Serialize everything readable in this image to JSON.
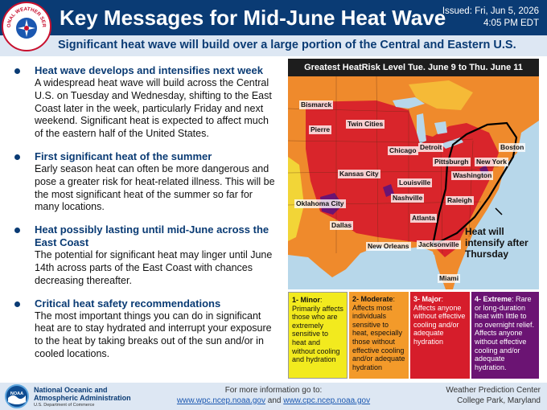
{
  "header": {
    "title": "Key Messages for Mid-June Heat Wave",
    "issued_line1": "Issued: Fri, Jun 5, 2026",
    "issued_line2": "4:05 PM EDT",
    "logo_text": "NATIONAL WEATHER SERVICE",
    "logo_icon": "nws-logo-icon"
  },
  "subtitle": "Significant heat wave will build over a large portion of the Central and Eastern U.S.",
  "messages": [
    {
      "headline": "Heat wave develops and intensifies next week",
      "body": "A widespread heat wave will build across the Central U.S. on Tuesday and Wednesday, shifting to the East Coast later in the week, particularly Friday and next weekend. Significant heat is expected to affect much of the eastern half of the United States."
    },
    {
      "headline": "First significant heat of the summer",
      "body": "Early season heat can often be more dangerous and pose a greater risk for heat-related illness. This will be the most significant heat of the summer so far for many locations."
    },
    {
      "headline": "Heat possibly lasting until mid-June across the East Coast",
      "body": "The potential for significant heat may linger until June 14th across parts of the East Coast with chances decreasing thereafter."
    },
    {
      "headline": "Critical heat safety recommendations",
      "body": "The most important things you can do in significant heat are to stay hydrated and interrupt your exposure to the heat by taking breaks out of the sun and/or in cooled locations."
    }
  ],
  "map": {
    "title": "Greatest HeatRisk Level Tue. June 9 to Thu. June 11",
    "annotation": "Heat will intensify after Thursday",
    "cities": [
      "Bismarck",
      "Pierre",
      "Twin Cities",
      "Detroit",
      "Chicago",
      "Boston",
      "Pittsburgh",
      "New York",
      "Washington",
      "Kansas City",
      "Louisville",
      "Raleigh",
      "Nashville",
      "Oklahoma City",
      "Atlanta",
      "Dallas",
      "New Orleans",
      "Jacksonville",
      "Miami"
    ]
  },
  "legend": [
    {
      "name": "1- Minor",
      "desc": "Primarily affects those who are extremely sensitive to heat and without cooling and hydration",
      "color": "#f2ea1e"
    },
    {
      "name": "2- Moderate",
      "desc": "Affects most individuals sensitive to heat, especially those without effective cooling and/or adequate hydration",
      "color": "#f39a2a"
    },
    {
      "name": "3- Major",
      "desc": "Affects anyone without effective cooling and/or adequate hydration",
      "color": "#d61d2b"
    },
    {
      "name": "4- Extreme",
      "desc": "Rare or long-duration heat with little to no overnight relief. Affects anyone without effective cooling and/or adequate hydration.",
      "color": "#6b1473"
    }
  ],
  "footer": {
    "org_line1": "National Oceanic and",
    "org_line2": "Atmospheric Administration",
    "dept": "U.S. Department of Commerce",
    "more_info": "For more information go to:",
    "link1": "www.wpc.ncep.noaa.gov",
    "and": "and",
    "link2": "www.cpc.ncep.noaa.gov",
    "center_line1": "Weather Prediction Center",
    "center_line2": "College Park, Maryland",
    "logo_text": "NOAA"
  }
}
